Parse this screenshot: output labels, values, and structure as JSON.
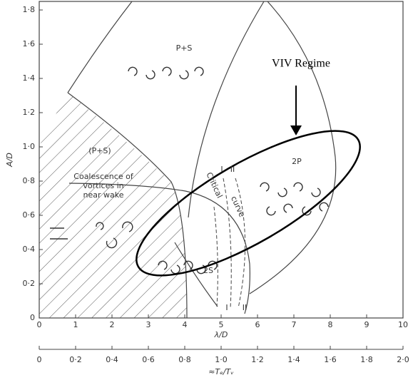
{
  "chart_data": {
    "type": "region-map",
    "x_label": "λ/D",
    "y_label": "A/D",
    "x2_label": "≈Tₑ/Tᵥ",
    "xlim": [
      0,
      10
    ],
    "ylim": [
      0,
      1.85
    ],
    "x2lim": [
      0,
      2
    ],
    "xticks": [
      0,
      1,
      2,
      3,
      4,
      5,
      6,
      7,
      8,
      9,
      10
    ],
    "yticks": [
      0,
      {
        "value": 0.2,
        "label": "0·2"
      },
      {
        "value": 0.4,
        "label": "0·4"
      },
      {
        "value": 0.6,
        "label": "0·6"
      },
      {
        "value": 0.8,
        "label": "0·8"
      },
      {
        "value": 1.0,
        "label": "1·0"
      },
      {
        "value": 1.2,
        "label": "1·2"
      },
      {
        "value": 1.4,
        "label": "1·4"
      },
      {
        "value": 1.6,
        "label": "1·6"
      },
      {
        "value": 1.8,
        "label": "1·8"
      }
    ],
    "x2ticks": [
      0,
      {
        "value": 0.2,
        "label": "0·2"
      },
      {
        "value": 0.4,
        "label": "0·4"
      },
      {
        "value": 0.6,
        "label": "0·6"
      },
      {
        "value": 0.8,
        "label": "0·8"
      },
      {
        "value": 1.0,
        "label": "1·0"
      },
      {
        "value": 1.2,
        "label": "1·2"
      },
      {
        "value": 1.4,
        "label": "1·4"
      },
      {
        "value": 1.6,
        "label": "1·6"
      },
      {
        "value": 1.8,
        "label": "1·8"
      },
      {
        "value": 2.0,
        "label": "2·0"
      }
    ],
    "annotations": [
      "P+S",
      "(P+S)",
      "Coalescence of",
      "vortices in",
      "near wake",
      "2P",
      "2S",
      "Critical",
      "curve",
      "I",
      "II",
      "I",
      "II",
      "VIV Regime"
    ]
  }
}
